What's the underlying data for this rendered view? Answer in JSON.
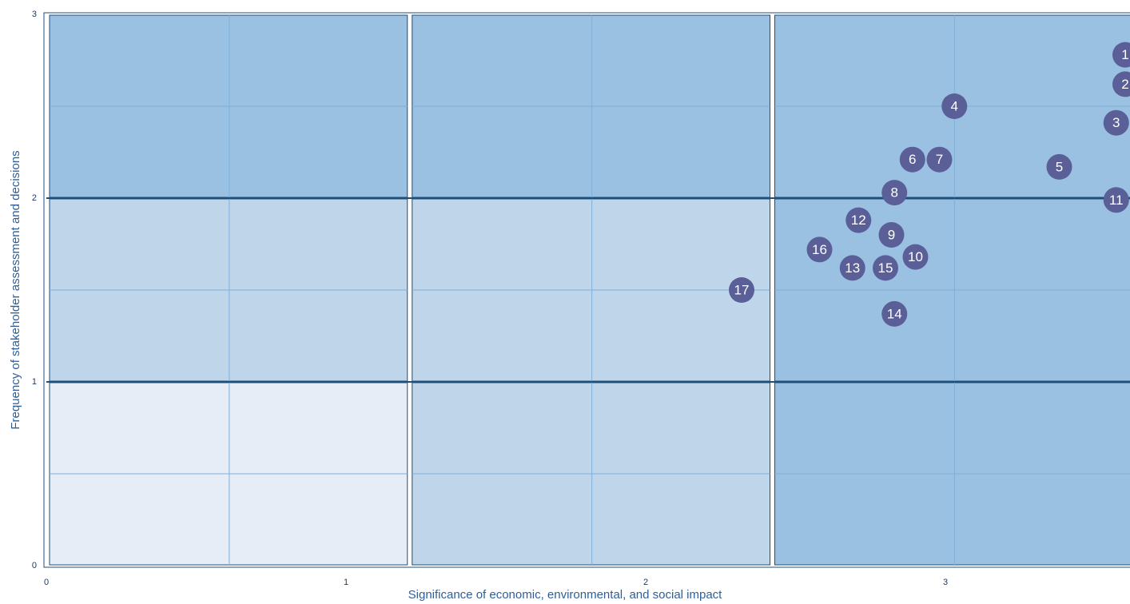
{
  "chart_data": {
    "type": "scatter",
    "x_label": "Significance of economic, environmental, and social impact",
    "y_label": "Frequency of stakeholder assessment and decisions",
    "labels": [
      "1",
      "2",
      "3",
      "4",
      "5",
      "6",
      "7",
      "8",
      "9",
      "10",
      "11",
      "12",
      "13",
      "14",
      "15",
      "16",
      "17"
    ],
    "x": [
      3.6,
      3.6,
      3.57,
      3.03,
      3.38,
      2.89,
      2.98,
      2.83,
      2.82,
      2.9,
      3.57,
      2.71,
      2.69,
      2.83,
      2.8,
      2.58,
      2.32
    ],
    "y": [
      2.78,
      2.62,
      2.41,
      2.5,
      2.17,
      2.21,
      2.21,
      2.03,
      1.8,
      1.68,
      1.99,
      1.88,
      1.62,
      1.37,
      1.62,
      1.72,
      1.5
    ],
    "color": "#5b5f97",
    "xlim": [
      0,
      3.63
    ],
    "xticks": [
      0,
      1,
      2,
      3
    ],
    "ylim": [
      0,
      3
    ],
    "yticks": [
      0,
      1,
      2,
      3
    ]
  }
}
